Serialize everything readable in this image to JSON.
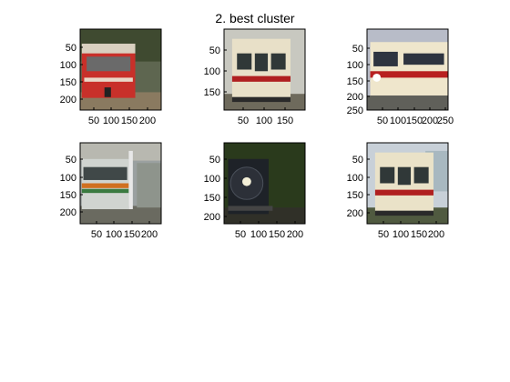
{
  "figure": {
    "title": "2. best cluster"
  },
  "panels": [
    {
      "name": "panel-1",
      "scene": "red-railbus",
      "yticks": [
        "50",
        "100",
        "150",
        "200"
      ],
      "xticks": [
        "50",
        "100",
        "150",
        "200"
      ],
      "colors": {
        "sky": "#5e6650",
        "trees": "#3f4a30",
        "body": "#c8302a",
        "roof": "#d9d0c0",
        "window": "#6a6a6a",
        "ground": "#8a7a60"
      }
    },
    {
      "name": "panel-2",
      "scene": "cream-red-front",
      "yticks": [
        "50",
        "100",
        "150"
      ],
      "xticks": [
        "50",
        "100",
        "150"
      ],
      "colors": {
        "sky": "#c8c8c0",
        "body": "#e8e0c8",
        "stripe": "#b02020",
        "window": "#303838",
        "ground": "#6e6a5c"
      }
    },
    {
      "name": "panel-3",
      "scene": "cream-red-side",
      "yticks": [
        "50",
        "100",
        "150",
        "200",
        "250"
      ],
      "xticks": [
        "50",
        "100",
        "150",
        "200",
        "250"
      ],
      "colors": {
        "sky": "#b8bcc8",
        "body": "#efe6cc",
        "stripe": "#b82020",
        "window": "#2e3440",
        "ground": "#60605a"
      }
    },
    {
      "name": "panel-4",
      "scene": "platform-orange-green",
      "yticks": [
        "50",
        "100",
        "150",
        "200"
      ],
      "xticks": [
        "50",
        "100",
        "150",
        "200"
      ],
      "colors": {
        "sky": "#9aa0a0",
        "body": "#d0d4d0",
        "stripe": "#d07020",
        "stripe2": "#3a7a40",
        "window": "#404848",
        "ground": "#6a6a60"
      }
    },
    {
      "name": "panel-5",
      "scene": "steam-locomotive",
      "yticks": [
        "50",
        "100",
        "150",
        "200"
      ],
      "xticks": [
        "50",
        "100",
        "150",
        "200"
      ],
      "colors": {
        "sky": "#3a4a2a",
        "trees": "#2a3a1c",
        "body": "#1e2228",
        "lamp": "#f4f0d8",
        "ground": "#303028"
      }
    },
    {
      "name": "panel-6",
      "scene": "cream-red-front-2",
      "yticks": [
        "50",
        "100",
        "150",
        "200"
      ],
      "xticks": [
        "50",
        "100",
        "150",
        "200"
      ],
      "colors": {
        "sky": "#c8d0d8",
        "body": "#eae2c8",
        "stripe": "#b02020",
        "window": "#303838",
        "ground": "#505a40",
        "house": "#a8b8c0"
      }
    }
  ]
}
